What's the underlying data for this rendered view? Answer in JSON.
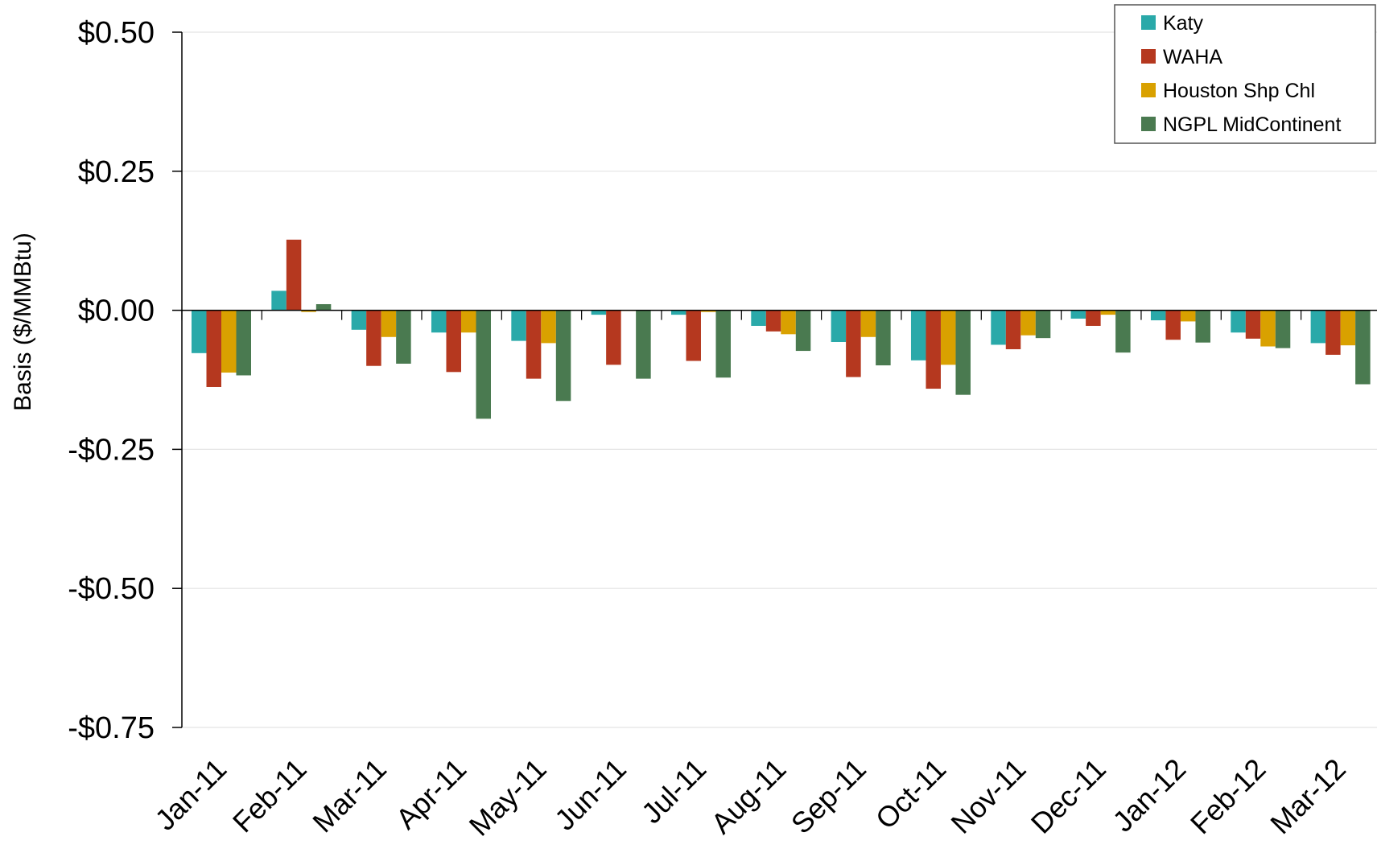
{
  "chart_data": {
    "type": "bar",
    "title": "",
    "xlabel": "",
    "ylabel": "Basis ($/MMBtu)",
    "ylim": [
      -0.75,
      0.5
    ],
    "yticks": [
      0.5,
      0.25,
      0.0,
      -0.25,
      -0.5,
      -0.75
    ],
    "ytick_labels": [
      "$0.50",
      "$0.25",
      "$0.00",
      "-$0.25",
      "-$0.50",
      "-$0.75"
    ],
    "grid": true,
    "legend_position": "top-right",
    "categories": [
      "Jan-11",
      "Feb-11",
      "Mar-11",
      "Apr-11",
      "May-11",
      "Jun-11",
      "Jul-11",
      "Aug-11",
      "Sep-11",
      "Oct-11",
      "Nov-11",
      "Dec-11",
      "Jan-12",
      "Feb-12",
      "Mar-12"
    ],
    "series": [
      {
        "name": "Katy",
        "color": "#2aa9a9",
        "values": [
          -0.077,
          0.035,
          -0.035,
          -0.04,
          -0.055,
          -0.008,
          -0.008,
          -0.028,
          -0.057,
          -0.09,
          -0.062,
          -0.015,
          -0.018,
          -0.04,
          -0.059
        ]
      },
      {
        "name": "WAHA",
        "color": "#b5381f",
        "values": [
          -0.138,
          0.127,
          -0.1,
          -0.111,
          -0.123,
          -0.098,
          -0.091,
          -0.038,
          -0.12,
          -0.141,
          -0.07,
          -0.028,
          -0.053,
          -0.051,
          -0.08
        ]
      },
      {
        "name": "Houston Shp Chl",
        "color": "#d9a100",
        "values": [
          -0.112,
          -0.003,
          -0.048,
          -0.04,
          -0.059,
          0.0,
          -0.003,
          -0.043,
          -0.048,
          -0.098,
          -0.045,
          -0.008,
          -0.02,
          -0.065,
          -0.063
        ]
      },
      {
        "name": "NGPL MidContinent",
        "color": "#4a7a50",
        "values": [
          -0.117,
          0.011,
          -0.096,
          -0.195,
          -0.163,
          -0.123,
          -0.121,
          -0.073,
          -0.099,
          -0.152,
          -0.05,
          -0.076,
          -0.058,
          -0.068,
          -0.133
        ]
      }
    ]
  }
}
